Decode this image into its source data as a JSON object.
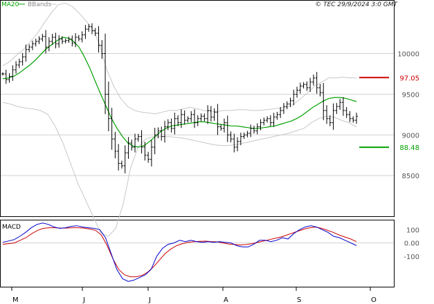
{
  "header": {
    "legend_ma": "MA20",
    "legend_bbands": "BBands",
    "source": "© TEC 29/9/2024 3:0 GMT"
  },
  "macd_label": "MACD",
  "colors": {
    "price": "#000000",
    "ma": "#00a000",
    "bands": "#c8c8c8",
    "grid": "#d0d0d0",
    "macd": "#0000cc",
    "signal": "#cc0000",
    "resistance": "#cc0000",
    "support": "#00a000"
  },
  "chart_data": [
    {
      "type": "ohlc",
      "title": "",
      "y_ticks": [
        {
          "value": 10000,
          "label": "10000"
        },
        {
          "value": 9500,
          "label": "9500"
        },
        {
          "value": 9000,
          "label": "9000"
        },
        {
          "value": 8500,
          "label": "8500"
        }
      ],
      "ylim": [
        8000,
        10650
      ],
      "x_months": [
        "M",
        "J",
        "J",
        "A",
        "S",
        "O"
      ],
      "n_bars": 130,
      "resistance": {
        "value": 9705,
        "label": "97.05"
      },
      "support": {
        "value": 8848,
        "label": "88.48"
      },
      "price_close": [
        9750,
        9680,
        9720,
        9800,
        9860,
        9900,
        9960,
        10050,
        10080,
        10120,
        10150,
        10180,
        10210,
        10080,
        10150,
        10200,
        10120,
        10180,
        10150,
        10160,
        10180,
        10130,
        10200,
        10180,
        10230,
        10300,
        10330,
        10280,
        10250,
        10100,
        10000,
        9500,
        9200,
        8950,
        8800,
        8650,
        8620,
        8780,
        8900,
        8850,
        8950,
        8980,
        8850,
        8750,
        8700,
        8850,
        9000,
        9050,
        8980,
        9100,
        9150,
        9080,
        9200,
        9150,
        9250,
        9180,
        9200,
        9250,
        9150,
        9200,
        9230,
        9200,
        9300,
        9220,
        9280,
        9100,
        9080,
        9150,
        9000,
        8950,
        8850,
        8920,
        8980,
        9000,
        9020,
        9080,
        9050,
        9100,
        9150,
        9180,
        9200,
        9150,
        9220,
        9250,
        9300,
        9350,
        9380,
        9420,
        9500,
        9550,
        9600,
        9620,
        9580,
        9650,
        9700,
        9580,
        9520,
        9300,
        9200,
        9150,
        9300,
        9350,
        9400,
        9300,
        9250,
        9200,
        9180,
        9230
      ],
      "ma20": [
        9690,
        9700,
        9720,
        9760,
        9810,
        9860,
        9920,
        9990,
        10060,
        10110,
        10160,
        10200,
        10190,
        10150,
        10080,
        9960,
        9820,
        9660,
        9500,
        9350,
        9200,
        9080,
        8980,
        8900,
        8860,
        8850,
        8870,
        8920,
        8980,
        9040,
        9080,
        9110,
        9120,
        9130,
        9140,
        9150,
        9160,
        9160,
        9150,
        9140,
        9130,
        9120,
        9110,
        9110,
        9100,
        9090,
        9080,
        9080,
        9090,
        9100,
        9110,
        9130,
        9150,
        9170,
        9200,
        9240,
        9290,
        9340,
        9380,
        9420,
        9450,
        9460,
        9460,
        9450,
        9430,
        9410
      ],
      "bb_upper": [
        9850,
        9900,
        9980,
        10050,
        10150,
        10250,
        10380,
        10500,
        10600,
        10620,
        10580,
        10500,
        10400,
        10300,
        10100,
        9800,
        9600,
        9450,
        9350,
        9300,
        9280,
        9270,
        9260,
        9280,
        9300,
        9300,
        9320,
        9340,
        9320,
        9300,
        9290,
        9290,
        9300,
        9300,
        9310,
        9310,
        9300,
        9300,
        9310,
        9320,
        9330,
        9340,
        9380,
        9450,
        9520,
        9600,
        9650,
        9700,
        9700,
        9710,
        9700,
        9700
      ],
      "bb_lower": [
        9400,
        9380,
        9350,
        9330,
        9320,
        9300,
        9250,
        9100,
        8900,
        8650,
        8400,
        8200,
        8000,
        7800,
        7750,
        7850,
        8150,
        8600,
        8850,
        8950,
        8980,
        8980,
        8980,
        8970,
        8960,
        8940,
        8920,
        8900,
        8880,
        8870,
        8870,
        8880,
        8900,
        8920,
        8940,
        8960,
        8980,
        9000,
        9020,
        9050,
        9080,
        9150,
        9200,
        9230,
        9220,
        9180,
        9150,
        9100
      ],
      "macd": {
        "y_ticks": [
          {
            "value": 100,
            "label": "100"
          },
          {
            "value": 0,
            "label": "0.00"
          },
          {
            "value": -100,
            "label": "-100"
          }
        ],
        "ylim": [
          -330,
          170
        ],
        "macd_line": [
          5,
          15,
          25,
          50,
          80,
          115,
          140,
          150,
          140,
          120,
          110,
          115,
          125,
          130,
          120,
          115,
          110,
          100,
          40,
          -80,
          -200,
          -270,
          -290,
          -280,
          -260,
          -240,
          -200,
          -100,
          -40,
          -10,
          0,
          20,
          10,
          20,
          10,
          5,
          10,
          5,
          10,
          5,
          0,
          -20,
          -30,
          -30,
          -10,
          20,
          20,
          10,
          20,
          40,
          30,
          70,
          100,
          120,
          130,
          120,
          100,
          80,
          50,
          40,
          20,
          0,
          -20
        ],
        "signal_line": [
          -10,
          -5,
          0,
          20,
          40,
          70,
          95,
          110,
          115,
          115,
          112,
          112,
          115,
          115,
          112,
          105,
          95,
          60,
          -20,
          -120,
          -200,
          -240,
          -255,
          -255,
          -245,
          -220,
          -180,
          -130,
          -80,
          -45,
          -20,
          -5,
          5,
          10,
          12,
          14,
          10,
          8,
          0,
          -8,
          -12,
          -15,
          -12,
          -5,
          5,
          15,
          25,
          35,
          45,
          60,
          75,
          90,
          105,
          115,
          120,
          110,
          95,
          80,
          60,
          45,
          30,
          10
        ]
      }
    }
  ]
}
